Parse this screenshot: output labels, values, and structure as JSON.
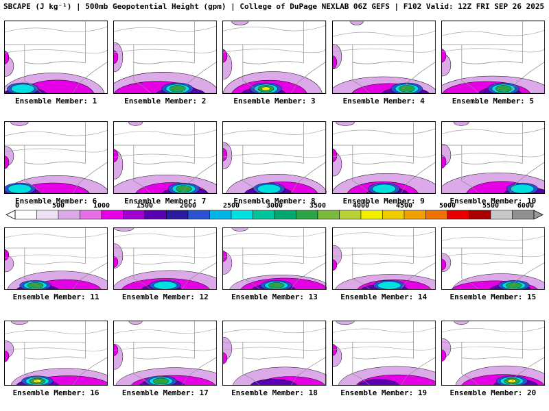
{
  "title": "SBCAPE (J kg⁻¹) | 500mb Geopotential Height (gpm) | College of DuPage NEXLAB 06Z GEFS | F102 Valid: 12Z FRI SEP 26 2025",
  "product": {
    "field": "SBCAPE",
    "field_units": "J kg⁻¹",
    "overlay": "500mb Geopotential Height",
    "overlay_units": "gpm",
    "source": "College of DuPage NEXLAB",
    "model_run": "06Z GEFS",
    "forecast_hour": "F102",
    "valid": "12Z FRI SEP 26 2025"
  },
  "colorbar": {
    "min": 0,
    "max": 6000,
    "interval": 250,
    "ticks": [
      "0",
      "500",
      "1000",
      "1500",
      "2000",
      "2500",
      "3000",
      "3500",
      "4000",
      "4500",
      "5000",
      "5500",
      "6000"
    ],
    "colors": [
      "#ffffff",
      "#f0e0f6",
      "#ddaae9",
      "#e66ee6",
      "#e600e6",
      "#a100d2",
      "#5a00b4",
      "#2a1a9e",
      "#2a52d2",
      "#00b4e6",
      "#00e0e0",
      "#00c49a",
      "#00a870",
      "#2aa444",
      "#7ab93c",
      "#b8d234",
      "#f0f000",
      "#f0cc00",
      "#f0a000",
      "#f07000",
      "#e80000",
      "#a80000",
      "#c8c8c8",
      "#909090"
    ],
    "left_arrow": "#ffffff",
    "right_arrow": "#9a9a9a"
  },
  "map_colors": {
    "lavender": "#ddaae9",
    "magenta": "#e600e6",
    "purple": "#5a00b4",
    "blue": "#2a52d2",
    "cyan": "#00e0e0",
    "green": "#2aa444",
    "yellow": "#f0f000",
    "state": "#8a8a8a",
    "contour": "#aaaaaa"
  },
  "panels": [
    {
      "label": "Ensemble Member: 1",
      "core": "cyan",
      "core_x": 0.18
    },
    {
      "label": "Ensemble Member: 2",
      "core": "green",
      "core_x": 0.62
    },
    {
      "label": "Ensemble Member: 3",
      "core": "yellow",
      "core_x": 0.42
    },
    {
      "label": "Ensemble Member: 4",
      "core": "green",
      "core_x": 0.72
    },
    {
      "label": "Ensemble Member: 5",
      "core": "green",
      "core_x": 0.6
    },
    {
      "label": "Ensemble Member: 6",
      "core": "cyan",
      "core_x": 0.15
    },
    {
      "label": "Ensemble Member: 7",
      "core": "green",
      "core_x": 0.68
    },
    {
      "label": "Ensemble Member: 8",
      "core": "cyan",
      "core_x": 0.45
    },
    {
      "label": "Ensemble Member: 9",
      "core": "cyan",
      "core_x": 0.5
    },
    {
      "label": "Ensemble Member: 10",
      "core": "cyan",
      "core_x": 0.78
    },
    {
      "label": "Ensemble Member: 11",
      "core": "green",
      "core_x": 0.3
    },
    {
      "label": "Ensemble Member: 12",
      "core": "cyan",
      "core_x": 0.5
    },
    {
      "label": "Ensemble Member: 13",
      "core": "green",
      "core_x": 0.52
    },
    {
      "label": "Ensemble Member: 14",
      "core": "cyan",
      "core_x": 0.55
    },
    {
      "label": "Ensemble Member: 15",
      "core": "green",
      "core_x": 0.7
    },
    {
      "label": "Ensemble Member: 16",
      "core": "yellow",
      "core_x": 0.32
    },
    {
      "label": "Ensemble Member: 17",
      "core": "green",
      "core_x": 0.46
    },
    {
      "label": "Ensemble Member: 18",
      "core": "purple",
      "core_x": 0.5
    },
    {
      "label": "Ensemble Member: 19",
      "core": "purple",
      "core_x": 0.42
    },
    {
      "label": "Ensemble Member: 20",
      "core": "yellow",
      "core_x": 0.68
    }
  ]
}
